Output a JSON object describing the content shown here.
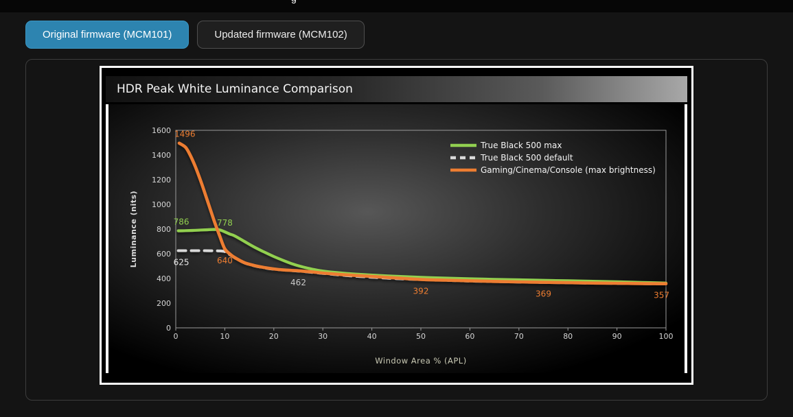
{
  "header_fragment": "g",
  "tabs": [
    {
      "label": "Original firmware (MCM101)",
      "active": true
    },
    {
      "label": "Updated firmware (MCM102)",
      "active": false
    }
  ],
  "chart": {
    "title": "HDR Peak White Luminance Comparison"
  },
  "colors": {
    "active_tab": "#2d84b0",
    "green_series": "#92d050",
    "gray_series": "#d9d9d9",
    "orange_series": "#ed7d31"
  },
  "chart_data": {
    "type": "line",
    "title": "HDR Peak White Luminance Comparison",
    "xlabel": "Window Area % (APL)",
    "ylabel": "Luminance (nits)",
    "xlim": [
      0,
      100
    ],
    "ylim": [
      0,
      1600
    ],
    "xticks": [
      0,
      10,
      20,
      30,
      40,
      50,
      60,
      70,
      80,
      90,
      100
    ],
    "yticks": [
      0,
      200,
      400,
      600,
      800,
      1000,
      1200,
      1400,
      1600
    ],
    "grid": false,
    "legend_position": "top-right",
    "series": [
      {
        "name": "True Black 500 max",
        "color": "#92d050",
        "dash": null,
        "width": 4.2,
        "z": 2,
        "points": [
          [
            0.5,
            786
          ],
          [
            2,
            787
          ],
          [
            4,
            790
          ],
          [
            6,
            794
          ],
          [
            8,
            797
          ],
          [
            9,
            793
          ],
          [
            10,
            778
          ],
          [
            11,
            760
          ],
          [
            12,
            745
          ],
          [
            14,
            700
          ],
          [
            16,
            655
          ],
          [
            18,
            615
          ],
          [
            20,
            578
          ],
          [
            22,
            545
          ],
          [
            24,
            515
          ],
          [
            26,
            492
          ],
          [
            28,
            474
          ],
          [
            30,
            460
          ],
          [
            33,
            447
          ],
          [
            36,
            437
          ],
          [
            40,
            427
          ],
          [
            45,
            417
          ],
          [
            50,
            409
          ],
          [
            55,
            403
          ],
          [
            60,
            397
          ],
          [
            65,
            393
          ],
          [
            70,
            389
          ],
          [
            75,
            385
          ],
          [
            80,
            381
          ],
          [
            85,
            377
          ],
          [
            90,
            373
          ],
          [
            95,
            368
          ],
          [
            100,
            363
          ]
        ]
      },
      {
        "name": "True Black 500 default",
        "color": "#d9d9d9",
        "dash": "11 8",
        "width": 4,
        "z": 1,
        "points": [
          [
            0.5,
            625
          ],
          [
            3,
            625
          ],
          [
            6,
            625
          ],
          [
            9,
            623
          ],
          [
            10,
            618
          ],
          [
            11,
            594
          ],
          [
            12,
            568
          ],
          [
            14,
            526
          ],
          [
            16,
            503
          ],
          [
            18,
            487
          ],
          [
            20,
            475
          ],
          [
            25,
            460
          ],
          [
            30,
            441
          ],
          [
            35,
            423
          ],
          [
            40,
            410
          ],
          [
            45,
            399
          ],
          [
            50,
            391
          ],
          [
            55,
            385
          ],
          [
            60,
            379
          ],
          [
            65,
            375
          ],
          [
            70,
            371
          ],
          [
            75,
            368
          ],
          [
            80,
            365
          ],
          [
            85,
            362
          ],
          [
            90,
            360
          ],
          [
            95,
            358
          ],
          [
            100,
            356
          ]
        ]
      },
      {
        "name": "Gaming/Cinema/Console (max brightness)",
        "color": "#ed7d31",
        "dash": null,
        "width": 4.6,
        "z": 3,
        "points": [
          [
            0.7,
            1496
          ],
          [
            2,
            1462
          ],
          [
            3,
            1395
          ],
          [
            4,
            1305
          ],
          [
            5,
            1200
          ],
          [
            6,
            1085
          ],
          [
            7,
            965
          ],
          [
            8,
            848
          ],
          [
            9,
            740
          ],
          [
            10,
            640
          ],
          [
            11,
            600
          ],
          [
            12,
            570
          ],
          [
            14,
            528
          ],
          [
            16,
            505
          ],
          [
            18,
            489
          ],
          [
            20,
            477
          ],
          [
            22,
            469
          ],
          [
            25,
            462
          ],
          [
            28,
            452
          ],
          [
            30,
            444
          ],
          [
            33,
            434
          ],
          [
            36,
            426
          ],
          [
            40,
            416
          ],
          [
            45,
            404
          ],
          [
            50,
            392
          ],
          [
            55,
            386
          ],
          [
            60,
            381
          ],
          [
            65,
            376
          ],
          [
            70,
            372
          ],
          [
            75,
            369
          ],
          [
            80,
            366
          ],
          [
            85,
            363
          ],
          [
            90,
            361
          ],
          [
            95,
            359
          ],
          [
            100,
            357
          ]
        ]
      }
    ],
    "annotations": [
      {
        "text": "1496",
        "x": 0.7,
        "y": 1496,
        "color": "#ed7d31",
        "placement": "above",
        "align": "start"
      },
      {
        "text": "786",
        "x": 0.5,
        "y": 786,
        "color": "#92d050",
        "placement": "above",
        "align": "start"
      },
      {
        "text": "778",
        "x": 10,
        "y": 778,
        "color": "#92d050",
        "placement": "above"
      },
      {
        "text": "625",
        "x": 0.5,
        "y": 625,
        "color": "#e6e6e6",
        "placement": "below",
        "align": "start"
      },
      {
        "text": "640",
        "x": 10,
        "y": 640,
        "color": "#ed7d31",
        "placement": "below"
      },
      {
        "text": "462",
        "x": 25,
        "y": 462,
        "color": "#c9c9c9",
        "placement": "below"
      },
      {
        "text": "392",
        "x": 50,
        "y": 392,
        "color": "#ed7d31",
        "placement": "below"
      },
      {
        "text": "369",
        "x": 75,
        "y": 369,
        "color": "#ed7d31",
        "placement": "below"
      },
      {
        "text": "357",
        "x": 100,
        "y": 357,
        "color": "#ed7d31",
        "placement": "below",
        "align": "end"
      }
    ]
  }
}
